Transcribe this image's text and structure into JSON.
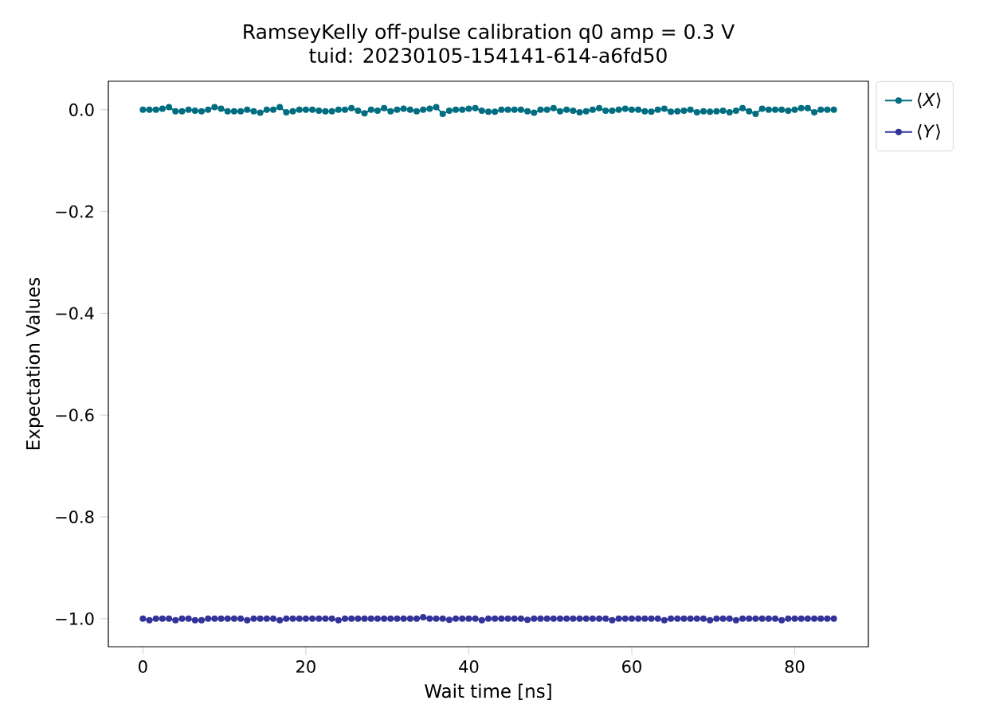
{
  "chart_data": {
    "type": "line",
    "title": "RamseyKelly off-pulse calibration q0 amp = 0.3 V",
    "subtitle": "tuid: 20230105-154141-614-a6fd50",
    "xlabel": "Wait time [ns]",
    "ylabel": "Expectation Values",
    "x": [
      0,
      0.8,
      1.6,
      2.4,
      3.2,
      4,
      4.8,
      5.6,
      6.4,
      7.2,
      8,
      8.8,
      9.6,
      10.4,
      11.2,
      12,
      12.8,
      13.6,
      14.4,
      15.2,
      16,
      16.8,
      17.6,
      18.4,
      19.2,
      20,
      20.8,
      21.6,
      22.4,
      23.2,
      24,
      24.8,
      25.6,
      26.4,
      27.2,
      28,
      28.8,
      29.6,
      30.4,
      31.2,
      32,
      32.8,
      33.6,
      34.4,
      35.2,
      36,
      36.8,
      37.6,
      38.4,
      39.2,
      40,
      40.8,
      41.6,
      42.4,
      43.2,
      44,
      44.8,
      45.6,
      46.4,
      47.2,
      48,
      48.8,
      49.6,
      50.4,
      51.2,
      52,
      52.8,
      53.6,
      54.4,
      55.2,
      56,
      56.8,
      57.6,
      58.4,
      59.2,
      60,
      60.8,
      61.6,
      62.4,
      63.2,
      64,
      64.8,
      65.6,
      66.4,
      67.2,
      68,
      68.8,
      69.6,
      70.4,
      71.2,
      72,
      72.8,
      73.6,
      74.4,
      75.2,
      76,
      76.8,
      77.6,
      78.4,
      79.2,
      80,
      80.8,
      81.6,
      82.4,
      83.2,
      84,
      84.8
    ],
    "series": [
      {
        "name": "⟨*X*⟩",
        "color": "#006e80",
        "values": [
          0,
          0,
          0,
          0.002,
          0.005,
          -0.003,
          -0.003,
          0,
          -0.002,
          -0.003,
          0,
          0.005,
          0.002,
          -0.003,
          -0.003,
          -0.003,
          0,
          -0.003,
          -0.006,
          0,
          0,
          0.005,
          -0.005,
          -0.003,
          0,
          0,
          0,
          -0.002,
          -0.003,
          -0.003,
          0,
          0,
          0.003,
          -0.002,
          -0.007,
          0,
          -0.002,
          0.003,
          -0.003,
          0,
          0.002,
          0,
          -0.003,
          0,
          0.002,
          0.005,
          -0.008,
          -0.002,
          0,
          0,
          0.002,
          0.003,
          -0.002,
          -0.004,
          -0.004,
          0,
          0,
          0,
          0,
          -0.003,
          -0.006,
          0,
          0,
          0.003,
          -0.003,
          0,
          -0.002,
          -0.005,
          -0.003,
          0,
          0.003,
          -0.002,
          -0.002,
          0,
          0.002,
          0,
          0,
          -0.003,
          -0.004,
          0,
          0.002,
          -0.004,
          -0.003,
          -0.002,
          0,
          -0.005,
          -0.003,
          -0.004,
          -0.003,
          -0.002,
          -0.005,
          -0.002,
          0.003,
          -0.003,
          -0.008,
          0.002,
          0,
          0,
          0,
          -0.002,
          0,
          0.003,
          0.003,
          -0.005,
          0,
          0,
          0
        ]
      },
      {
        "name": "⟨*Y*⟩",
        "color": "#333399",
        "values": [
          -1,
          -1.003,
          -1,
          -1,
          -1,
          -1.003,
          -1,
          -1,
          -1.003,
          -1.003,
          -1,
          -1,
          -1,
          -1,
          -1,
          -1,
          -1.003,
          -1,
          -1,
          -1,
          -1,
          -1.003,
          -1,
          -1,
          -1,
          -1,
          -1,
          -1,
          -1,
          -1,
          -1.003,
          -1,
          -1,
          -1,
          -1,
          -1,
          -1,
          -1,
          -1,
          -1,
          -1,
          -1,
          -1,
          -0.997,
          -1,
          -1,
          -1,
          -1.002,
          -1,
          -1,
          -1,
          -1,
          -1.003,
          -1,
          -1,
          -1,
          -1,
          -1,
          -1,
          -1.002,
          -1,
          -1,
          -1,
          -1,
          -1,
          -1,
          -1,
          -1,
          -1,
          -1,
          -1,
          -1,
          -1.003,
          -1,
          -1,
          -1,
          -1,
          -1,
          -1,
          -1,
          -1.003,
          -1,
          -1,
          -1,
          -1,
          -1,
          -1,
          -1.003,
          -1,
          -1,
          -1,
          -1.003,
          -1,
          -1,
          -1,
          -1,
          -1,
          -1,
          -1.003,
          -1,
          -1,
          -1,
          -1,
          -1,
          -1,
          -1,
          -1
        ]
      }
    ],
    "xlim": [
      -4.24,
      89.04
    ],
    "ylim": [
      -1.055,
      0.056
    ],
    "xticks": [
      0,
      20,
      40,
      60,
      80
    ],
    "yticks": [
      {
        "value": 0,
        "label": "0.0"
      },
      {
        "value": -0.2,
        "label": "−0.2"
      },
      {
        "value": -0.4,
        "label": "−0.4"
      },
      {
        "value": -0.6,
        "label": "−0.6"
      },
      {
        "value": -0.8,
        "label": "−0.8"
      },
      {
        "value": -1.0,
        "label": "−1.0"
      }
    ],
    "marker": "circle",
    "line_style": "solid",
    "grid": false,
    "legend": "top right"
  }
}
